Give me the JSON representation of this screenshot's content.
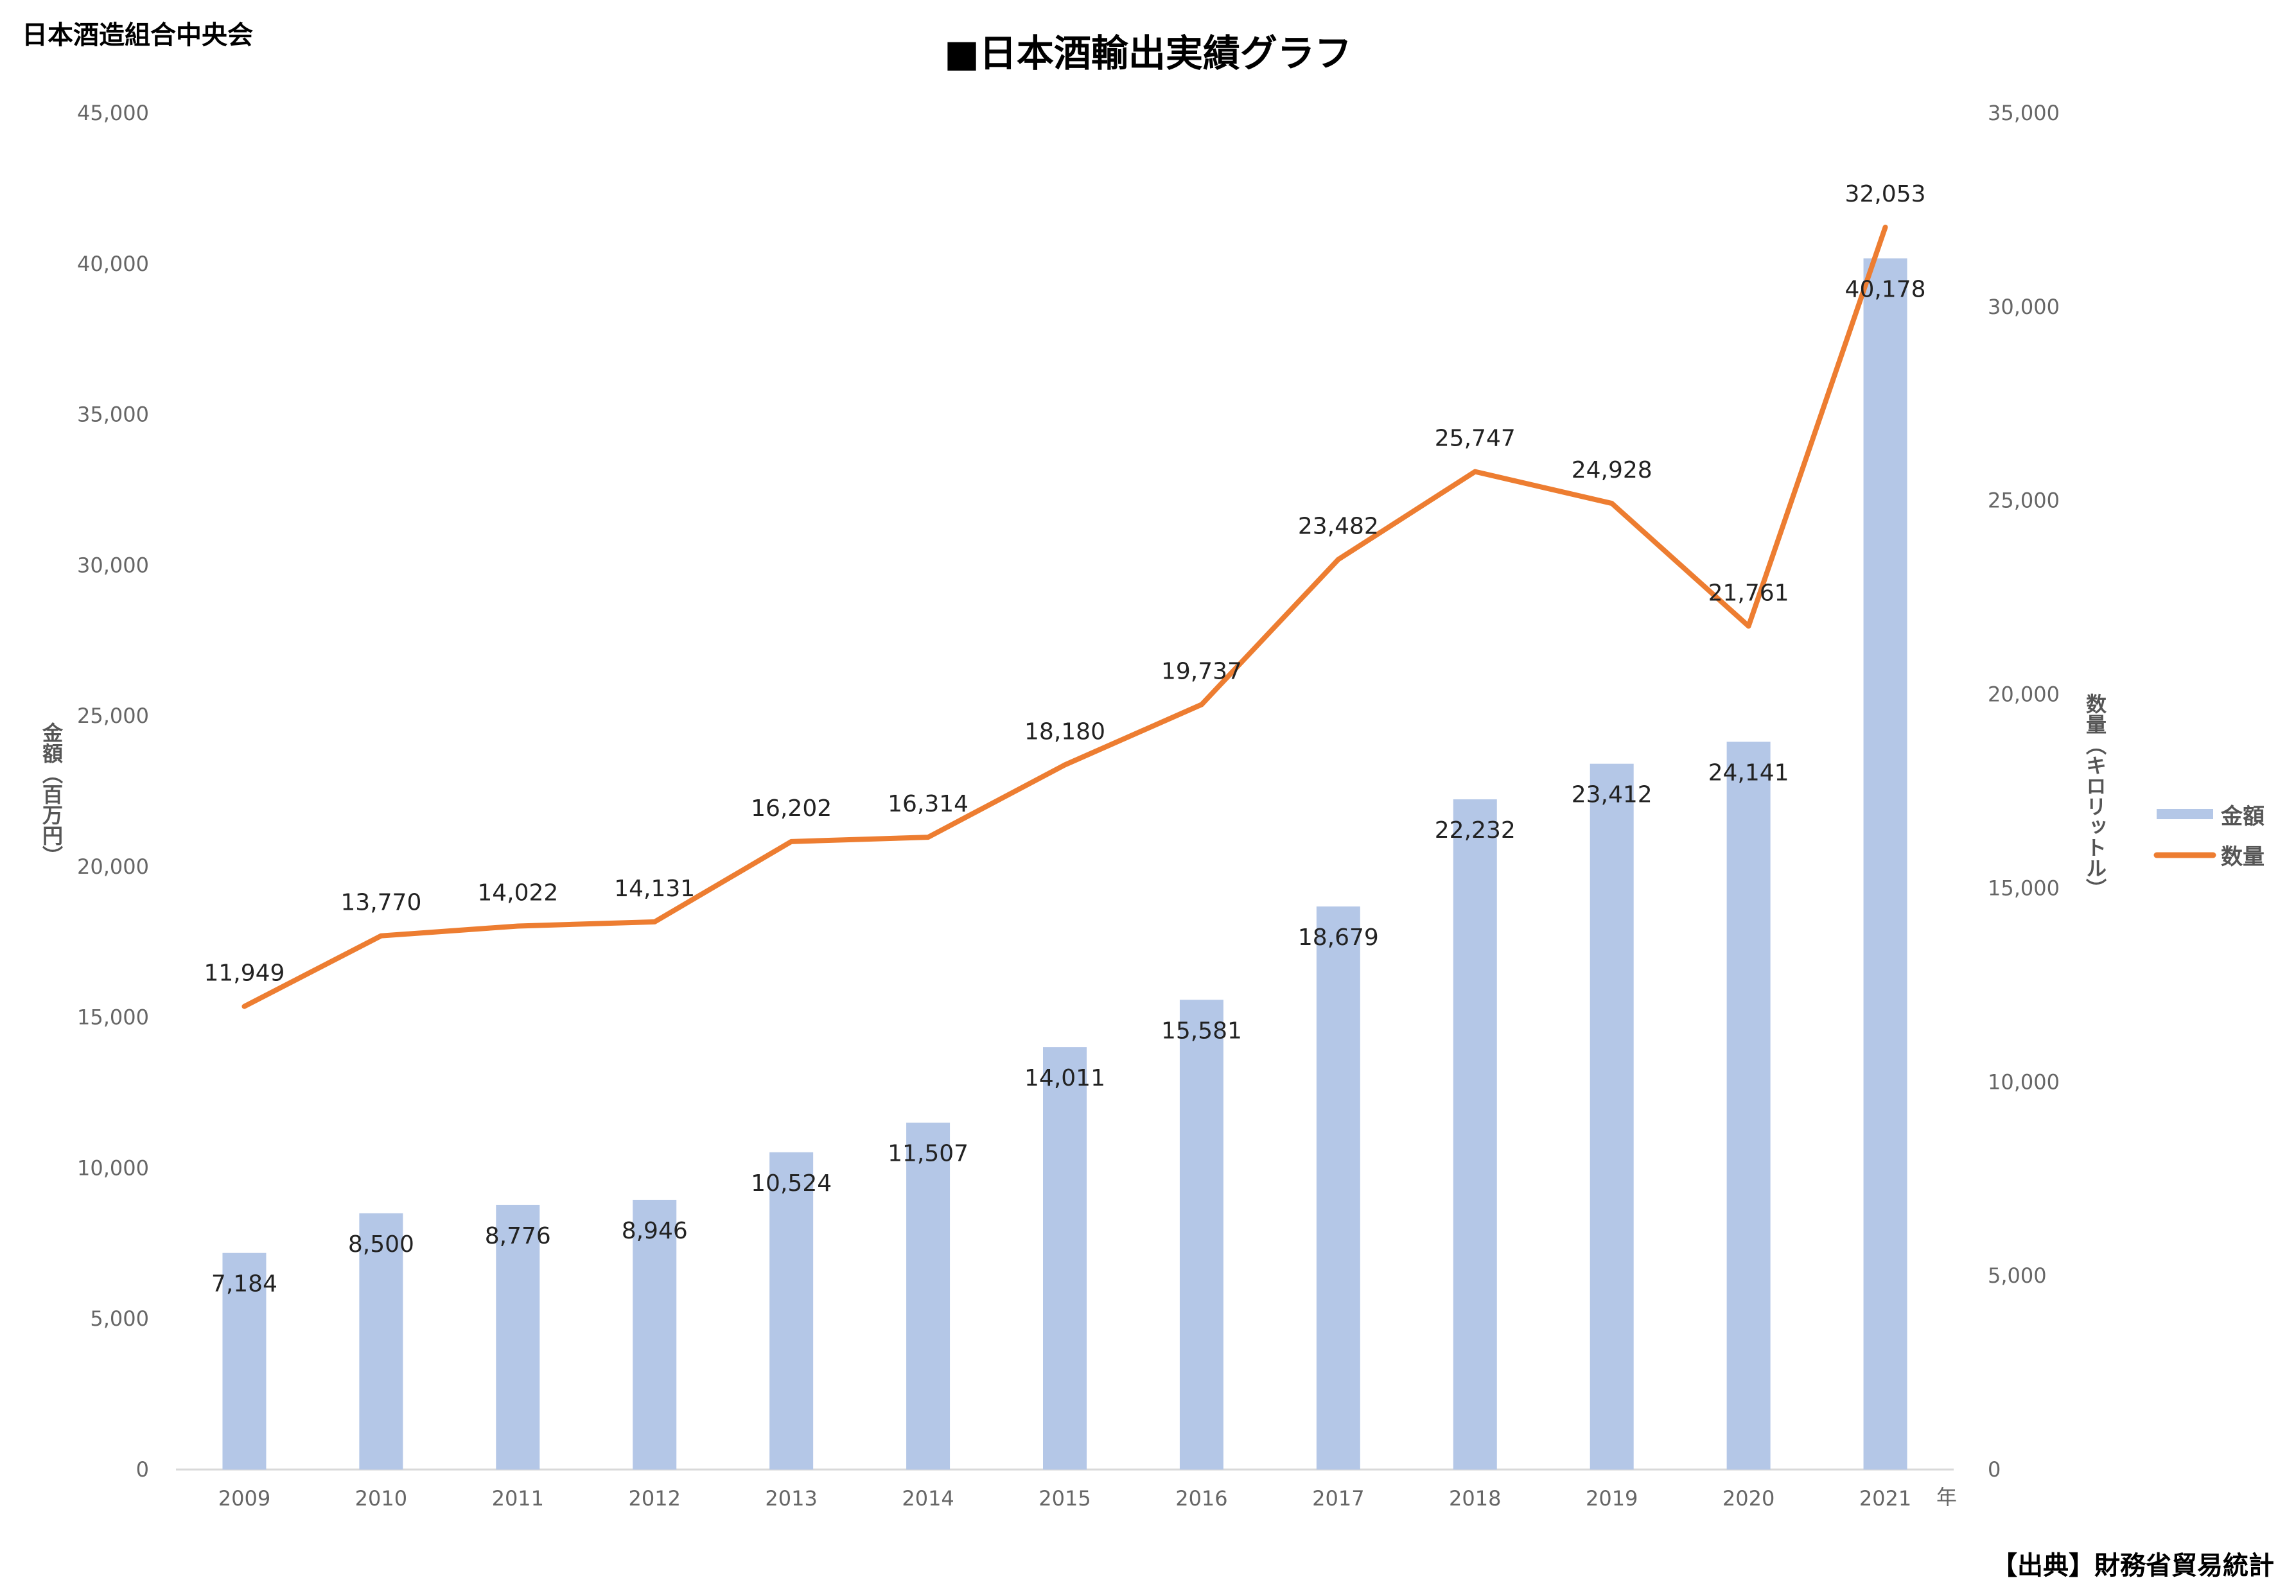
{
  "header": {
    "org": "日本酒造組合中央会",
    "title": "■日本酒輸出実績グラフ",
    "source": "【出典】財務省貿易統計"
  },
  "chart_data": {
    "type": "bar+line",
    "title": "■日本酒輸出実績グラフ",
    "categories": [
      "2009",
      "2010",
      "2011",
      "2012",
      "2013",
      "2014",
      "2015",
      "2016",
      "2017",
      "2018",
      "2019",
      "2020",
      "2021"
    ],
    "xlabel": "年",
    "ylabel_left": "金額（百万円）",
    "ylabel_right": "数量（キロリットル）",
    "ylim_left": [
      0,
      45000
    ],
    "ylim_right": [
      0,
      35000
    ],
    "yticks_left": [
      "0",
      "5,000",
      "10,000",
      "15,000",
      "20,000",
      "25,000",
      "30,000",
      "35,000",
      "40,000",
      "45,000"
    ],
    "yticks_right": [
      "0",
      "5,000",
      "10,000",
      "15,000",
      "20,000",
      "25,000",
      "30,000",
      "35,000"
    ],
    "legend_position": "right",
    "series": [
      {
        "name": "金額",
        "type": "bar",
        "axis": "left",
        "color": "#b4c7e7",
        "values": [
          7184,
          8500,
          8776,
          8946,
          10524,
          11507,
          14011,
          15581,
          18679,
          22232,
          23412,
          24141,
          40178
        ],
        "labels": [
          "7,184",
          "8,500",
          "8,776",
          "8,946",
          "10,524",
          "11,507",
          "14,011",
          "15,581",
          "18,679",
          "22,232",
          "23,412",
          "24,141",
          "40,178"
        ]
      },
      {
        "name": "数量",
        "type": "line",
        "axis": "right",
        "color": "#ed7d31",
        "values": [
          11949,
          13770,
          14022,
          14131,
          16202,
          16314,
          18180,
          19737,
          23482,
          25747,
          24928,
          21761,
          32053
        ],
        "labels": [
          "11,949",
          "13,770",
          "14,022",
          "14,131",
          "16,202",
          "16,314",
          "18,180",
          "19,737",
          "23,482",
          "25,747",
          "24,928",
          "21,761",
          "32,053"
        ]
      }
    ]
  }
}
